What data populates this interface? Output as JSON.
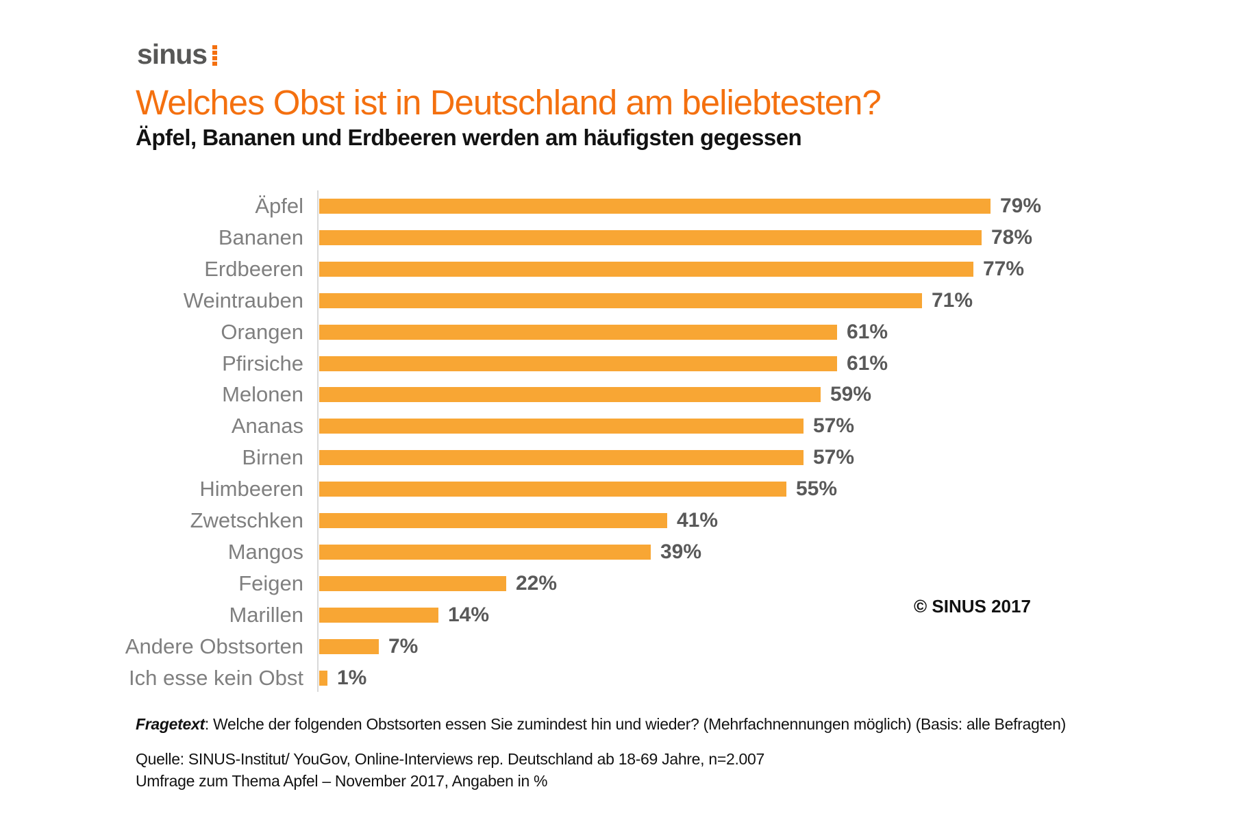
{
  "logo": {
    "text": "sinus"
  },
  "copyright": "© SINUS 2017",
  "footnotes": {
    "fragetext_label": "Fragetext",
    "fragetext_rest": ": Welche der folgenden Obstsorten essen Sie zumindest hin und wieder? (Mehrfachnennungen möglich) (Basis: alle Befragten)",
    "source_line1": "Quelle: SINUS-Institut/ YouGov, Online-Interviews rep. Deutschland ab 18-69 Jahre, n=2.007",
    "source_line2": "Umfrage zum Thema Apfel – November 2017, Angaben in %"
  },
  "colors": {
    "accent": "#F4700F",
    "bar": "#F8A634",
    "label": "#7F7F7F",
    "value": "#595959",
    "axis": "#D9D9D9",
    "logo_gray": "#575756"
  },
  "chart_data": {
    "type": "bar",
    "orientation": "horizontal",
    "title": "Welches Obst ist in Deutschland am beliebtesten?",
    "subtitle": "Äpfel, Bananen und Erdbeeren werden am häufigsten gegessen",
    "categories": [
      "Äpfel",
      "Bananen",
      "Erdbeeren",
      "Weintrauben",
      "Orangen",
      "Pfirsiche",
      "Melonen",
      "Ananas",
      "Birnen",
      "Himbeeren",
      "Zwetschken",
      "Mangos",
      "Feigen",
      "Marillen",
      "Andere Obstsorten",
      "Ich esse kein Obst"
    ],
    "values": [
      79,
      78,
      77,
      71,
      61,
      61,
      59,
      57,
      57,
      55,
      41,
      39,
      22,
      14,
      7,
      1
    ],
    "value_suffix": "%",
    "xlim": [
      0,
      100
    ],
    "grid": false,
    "data_labels": true,
    "legend": false
  }
}
